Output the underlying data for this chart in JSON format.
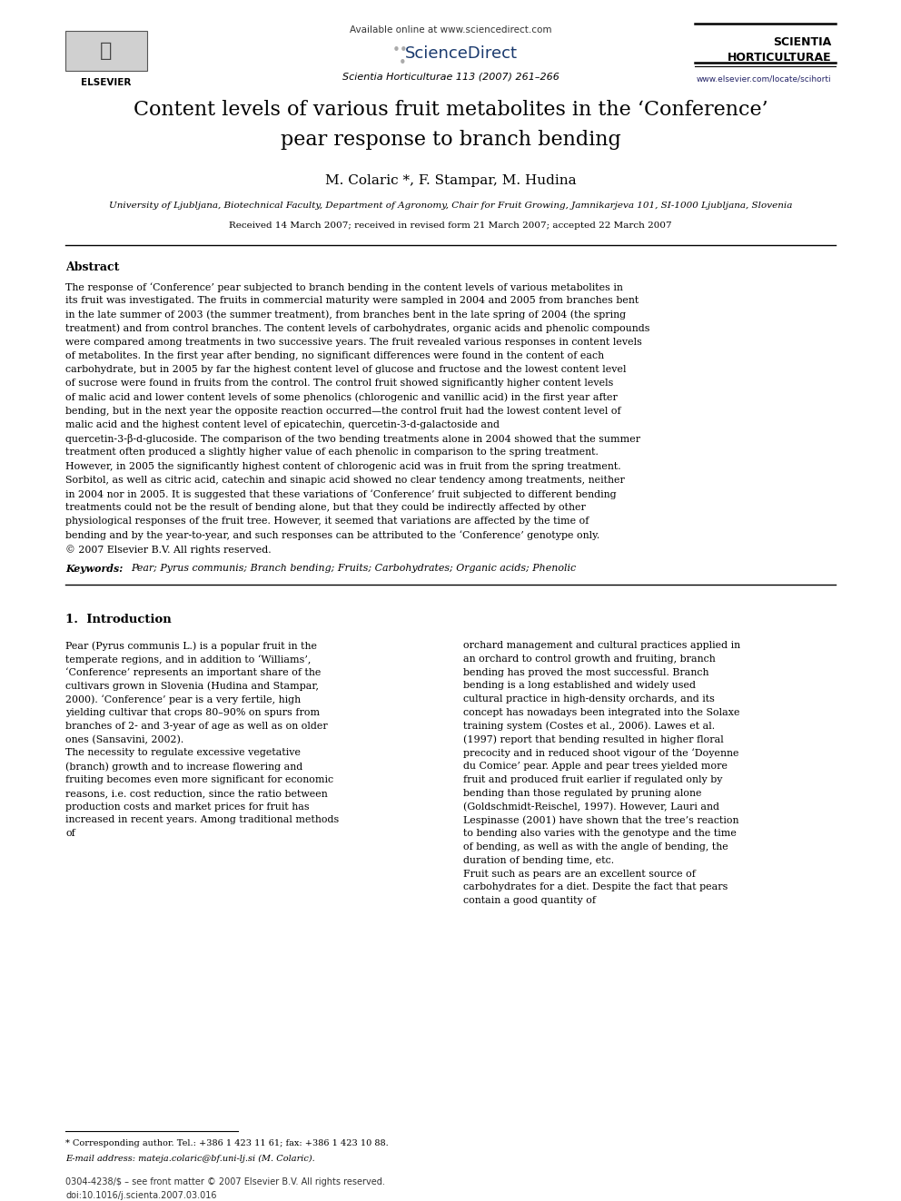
{
  "background_color": "#ffffff",
  "page_width": 9.92,
  "page_height": 13.23,
  "header": {
    "available_online": "Available online at www.sciencedirect.com",
    "sciencedirect": "ScienceDirect",
    "journal_info": "Scientia Horticulturae 113 (2007) 261–266",
    "journal_abbrev_line1": "SCIENTIA",
    "journal_abbrev_line2": "HORTICULTURAE",
    "website": "www.elsevier.com/locate/scihorti"
  },
  "title_line1": "Content levels of various fruit metabolites in the ‘Conference’",
  "title_line2": "pear response to branch bending",
  "authors_part1": "M. Colaric",
  "authors_part2": ", F. Stampar, M. Hudina",
  "affiliation": "University of Ljubljana, Biotechnical Faculty, Department of Agronomy, Chair for Fruit Growing, Jamnikarjeva 101, SI-1000 Ljubljana, Slovenia",
  "received": "Received 14 March 2007; received in revised form 21 March 2007; accepted 22 March 2007",
  "abstract_title": "Abstract",
  "abstract_main": "The response of ‘Conference’ pear subjected to branch bending in the content levels of various metabolites in its fruit was investigated. The fruits in commercial maturity were sampled in 2004 and 2005 from branches bent in the late summer of 2003 (the summer treatment), from branches bent in the late spring of 2004 (the spring treatment) and from control branches. The content levels of carbohydrates, organic acids and phenolic compounds were compared among treatments in two successive years. The fruit revealed various responses in content levels of metabolites. In the first year after bending, no significant differences were found in the content of each carbohydrate, but in 2005 by far the highest content level of glucose and fructose and the lowest content level of sucrose were found in fruits from the control. The control fruit showed significantly higher content levels of malic acid and lower content levels of some phenolics (chlorogenic and vanillic acid) in the first year after bending, but in the next year the opposite reaction occurred—the control fruit had the lowest content level of malic acid and the highest content level of epicatechin, quercetin-3-d-galactoside and quercetin-3-β-d-glucoside. The comparison of the two bending treatments alone in 2004 showed that the summer treatment often produced a slightly higher value of each phenolic in comparison to the spring treatment. However, in 2005 the significantly highest content of chlorogenic acid was in fruit from the spring treatment. Sorbitol, as well as citric acid, catechin and sinapic acid showed no clear tendency among treatments, neither in 2004 nor in 2005. It is suggested that these variations of ‘Conference’ fruit subjected to different bending treatments could not be the result of bending alone, but that they could be indirectly affected by other physiological responses of the fruit tree. However, it seemed that variations are affected by the time of bending and by the year-to-year, and such responses can be attributed to the ‘Conference’ genotype only.",
  "abstract_copyright": "© 2007 Elsevier B.V. All rights reserved.",
  "keywords_label": "Keywords:",
  "keywords_text": "Pear; Pyrus communis; Branch bending; Fruits; Carbohydrates; Organic acids; Phenolic",
  "section1_title": "1.  Introduction",
  "section1_col1": "Pear (Pyrus communis L.) is a popular fruit in the temperate regions, and in addition to ‘Williams’, ‘Conference’ represents an important share of the cultivars grown in Slovenia (Hudina and Stampar, 2000). ‘Conference’ pear is a very fertile, high yielding cultivar that crops 80–90% on spurs from branches of 2- and 3-year of age as well as on older ones (Sansavini, 2002).\n    The necessity to regulate excessive vegetative (branch) growth and to increase flowering and fruiting becomes even more significant for economic reasons, i.e. cost reduction, since the ratio between production costs and market prices for fruit has increased in recent years. Among traditional methods of",
  "section1_col2": "orchard management and cultural practices applied in an orchard to control growth and fruiting, branch bending has proved the most successful. Branch bending is a long established and widely used cultural practice in high-density orchards, and its concept has nowadays been integrated into the Solaxe training system (Costes et al., 2006). Lawes et al. (1997) report that bending resulted in higher floral precocity and in reduced shoot vigour of the ‘Doyenne du Comice’ pear. Apple and pear trees yielded more fruit and produced fruit earlier if regulated only by bending than those regulated by pruning alone (Goldschmidt-Reischel, 1997). However, Lauri and Lespinasse (2001) have shown that the tree’s reaction to bending also varies with the genotype and the time of bending, as well as with the angle of bending, the duration of bending time, etc.\n    Fruit such as pears are an excellent source of carbohydrates for a diet. Despite the fact that pears contain a good quantity of",
  "footnote_star": "* Corresponding author. Tel.: +386 1 423 11 61; fax: +386 1 423 10 88.",
  "footnote_email": "E-mail address: mateja.colaric@bf.uni-lj.si (M. Colaric).",
  "footer_issn": "0304-4238/$ – see front matter © 2007 Elsevier B.V. All rights reserved.",
  "footer_doi": "doi:10.1016/j.scienta.2007.03.016"
}
